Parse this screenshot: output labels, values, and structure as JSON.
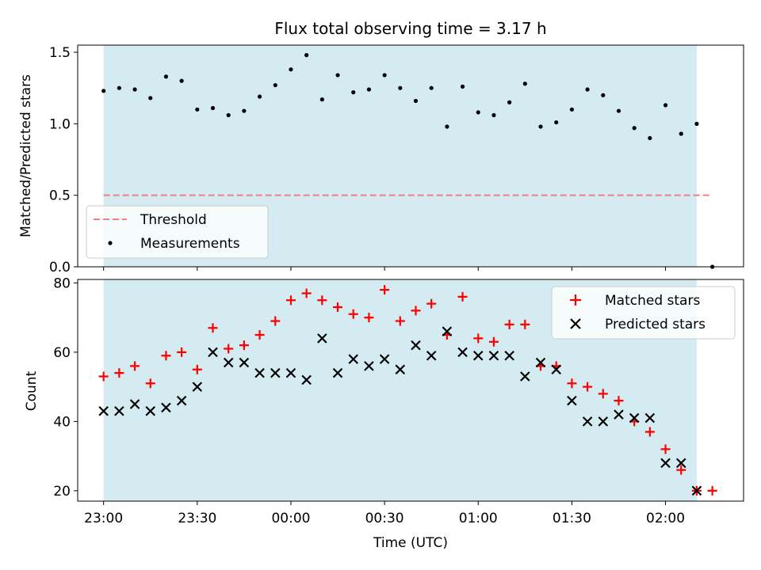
{
  "chart_data": [
    {
      "type": "scatter",
      "title": "Flux total observing time = 3.17 h",
      "ylabel": "Matched/Predicted stars",
      "xlabel": "",
      "ylim": [
        0,
        1.55
      ],
      "yticks": [
        0.0,
        0.5,
        1.0,
        1.5
      ],
      "ytick_labels": [
        "0.0",
        "0.5",
        "1.0",
        "1.5"
      ],
      "highlight_span": {
        "from": 0,
        "to": 190,
        "color": "#d3ebf1"
      },
      "threshold": {
        "name": "Threshold",
        "value": 0.5,
        "x_from": 0,
        "x_to": 195,
        "color": "#f08080"
      },
      "legend": {
        "placement": "lower-left",
        "entries": [
          "Threshold",
          "Measurements"
        ]
      },
      "series": [
        {
          "name": "Measurements",
          "marker": "dot",
          "color": "#000000",
          "x": [
            0,
            5,
            10,
            15,
            20,
            25,
            30,
            35,
            40,
            45,
            50,
            55,
            60,
            65,
            70,
            75,
            80,
            85,
            90,
            95,
            100,
            105,
            110,
            115,
            120,
            125,
            130,
            135,
            140,
            145,
            150,
            155,
            160,
            165,
            170,
            175,
            180,
            185,
            190,
            195
          ],
          "y": [
            1.23,
            1.25,
            1.24,
            1.18,
            1.33,
            1.3,
            1.1,
            1.11,
            1.06,
            1.09,
            1.19,
            1.27,
            1.38,
            1.48,
            1.17,
            1.34,
            1.22,
            1.24,
            1.34,
            1.25,
            1.16,
            1.25,
            0.98,
            1.26,
            1.08,
            1.06,
            1.15,
            1.28,
            0.98,
            1.01,
            1.1,
            1.24,
            1.2,
            1.09,
            0.97,
            0.9,
            1.13,
            0.93,
            1.0,
            0.0
          ]
        }
      ]
    },
    {
      "type": "scatter",
      "title": "",
      "ylabel": "Count",
      "xlabel": "Time (UTC)",
      "ylim": [
        17,
        81
      ],
      "yticks": [
        20,
        40,
        60,
        80
      ],
      "ytick_labels": [
        "20",
        "40",
        "60",
        "80"
      ],
      "x_unit": "minutes after 23:00 UTC",
      "xlim": [
        -8.3,
        205
      ],
      "xticks": [
        0,
        30,
        60,
        90,
        120,
        150,
        180
      ],
      "xtick_labels": [
        "23:00",
        "23:30",
        "00:00",
        "00:30",
        "01:00",
        "01:30",
        "02:00"
      ],
      "highlight_span": {
        "from": 0,
        "to": 190,
        "color": "#d3ebf1"
      },
      "legend": {
        "placement": "upper-right",
        "entries": [
          "Matched stars",
          "Predicted stars"
        ]
      },
      "series": [
        {
          "name": "Matched stars",
          "marker": "plus",
          "color": "#ff0000",
          "x": [
            0,
            5,
            10,
            15,
            20,
            25,
            30,
            35,
            40,
            45,
            50,
            55,
            60,
            65,
            70,
            75,
            80,
            85,
            90,
            95,
            100,
            105,
            110,
            115,
            120,
            125,
            130,
            135,
            140,
            145,
            150,
            155,
            160,
            165,
            170,
            175,
            180,
            185,
            190,
            195
          ],
          "y": [
            53,
            54,
            56,
            51,
            59,
            60,
            55,
            67,
            61,
            62,
            65,
            69,
            75,
            77,
            75,
            73,
            71,
            70,
            78,
            69,
            72,
            74,
            65,
            76,
            64,
            63,
            68,
            68,
            56,
            56,
            51,
            50,
            48,
            46,
            40,
            37,
            32,
            26,
            20,
            20
          ]
        },
        {
          "name": "Predicted stars",
          "marker": "x",
          "color": "#000000",
          "x": [
            0,
            5,
            10,
            15,
            20,
            25,
            30,
            35,
            40,
            45,
            50,
            55,
            60,
            65,
            70,
            75,
            80,
            85,
            90,
            95,
            100,
            105,
            110,
            115,
            120,
            125,
            130,
            135,
            140,
            145,
            150,
            155,
            160,
            165,
            170,
            175,
            180,
            185,
            190
          ],
          "y": [
            43,
            43,
            45,
            43,
            44,
            46,
            50,
            60,
            57,
            57,
            54,
            54,
            54,
            52,
            64,
            54,
            58,
            56,
            58,
            55,
            62,
            59,
            66,
            60,
            59,
            59,
            59,
            53,
            57,
            55,
            46,
            40,
            40,
            42,
            41,
            41,
            28,
            28,
            20
          ]
        }
      ]
    }
  ]
}
